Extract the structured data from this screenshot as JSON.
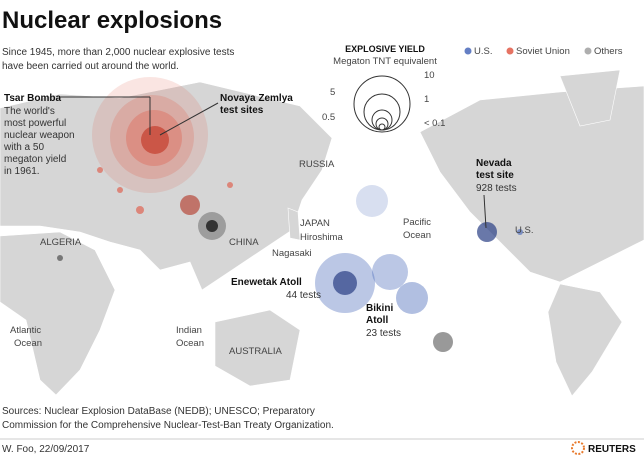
{
  "title": "Nuclear explosions",
  "subtitle": [
    "Since 1945, more than 2,000 nuclear explosive tests",
    "have been carried out around the world."
  ],
  "size_legend": {
    "title": "EXPLOSIVE YIELD",
    "subtitle": "Megaton TNT equivalent",
    "labels": [
      "10",
      "5",
      "1",
      "0.5",
      "< 0.1"
    ]
  },
  "color_legend": [
    {
      "label": "U.S.",
      "color": "#3d5fb5"
    },
    {
      "label": "Soviet Union",
      "color": "#e0503c"
    },
    {
      "label": "Others",
      "color": "#9a9a9a"
    }
  ],
  "annotations": {
    "tsar_bomba": {
      "title": "Tsar Bomba",
      "lines": [
        "The world's",
        "most powerful",
        "nuclear weapon",
        "with a 50",
        "megaton yield",
        "in 1961."
      ]
    },
    "novaya_zemlya": [
      "Novaya Zemlya",
      "test sites"
    ],
    "nevada": {
      "title": [
        "Nevada",
        "test site"
      ],
      "count": "928 tests"
    },
    "enewetak": {
      "title": "Enewetak Atoll",
      "count": "44 tests"
    },
    "bikini": {
      "title": [
        "Bikini",
        "Atoll"
      ],
      "count": "23 tests"
    }
  },
  "places": {
    "russia": "RUSSIA",
    "japan": "JAPAN",
    "hiroshima": "Hiroshima",
    "nagasaki": "Nagasaki",
    "china": "CHINA",
    "algeria": "ALGERIA",
    "pacific": [
      "Pacific",
      "Ocean"
    ],
    "us": "U.S.",
    "atlantic": [
      "Atlantic",
      "Ocean"
    ],
    "indian": [
      "Indian",
      "Ocean"
    ],
    "australia": "AUSTRALIA"
  },
  "source": [
    "Sources: Nuclear Explosion DataBase (NEDB); UNESCO; Preparatory",
    "Commission for the Comprehensive Nuclear-Test-Ban Treaty Organization."
  ],
  "credit": "W. Foo, 22/09/2017",
  "logo": "REUTERS"
}
